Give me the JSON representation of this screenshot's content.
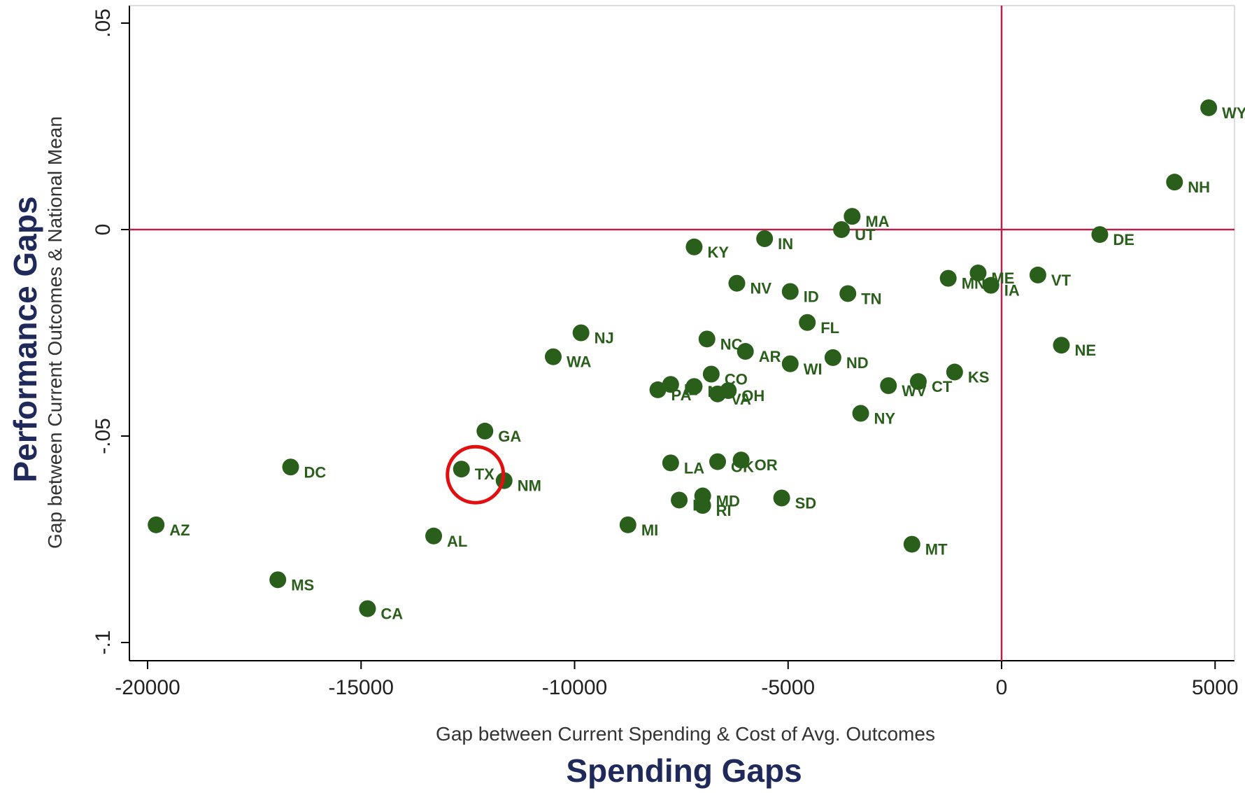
{
  "colors": {
    "point": "#2a5e1b",
    "ref_line": "#b3234e",
    "highlight": "#e01010",
    "overlay_label": "#1f2a5a"
  },
  "overlay": {
    "y_title": "Performance Gaps",
    "x_title": "Spending Gaps"
  },
  "chart_data": {
    "type": "scatter",
    "xlabel": "Gap between Current Spending & Cost of Avg. Outcomes",
    "ylabel": "Gap between Current Outcomes & National Mean",
    "xlim": [
      -21000,
      5500
    ],
    "ylim": [
      -0.105,
      0.055
    ],
    "x_ticks": [
      -20000,
      -15000,
      -10000,
      -5000,
      0,
      5000
    ],
    "x_tick_labels": [
      "-20000",
      "-15000",
      "-10000",
      "-5000",
      "0",
      "5000"
    ],
    "y_ticks": [
      -0.1,
      -0.05,
      0,
      0.05
    ],
    "y_tick_labels": [
      "-.1",
      "-.05",
      "0",
      ".05"
    ],
    "reference_lines": {
      "x": 0,
      "y": 0
    },
    "grid": false,
    "highlight": "TX",
    "points": [
      {
        "label": "WY",
        "x": 4850,
        "y": 0.0295
      },
      {
        "label": "NH",
        "x": 4050,
        "y": 0.0115
      },
      {
        "label": "DE",
        "x": 2300,
        "y": -0.0012
      },
      {
        "label": "VT",
        "x": 850,
        "y": -0.011
      },
      {
        "label": "NE",
        "x": 1400,
        "y": -0.028
      },
      {
        "label": "ME",
        "x": -550,
        "y": -0.0105
      },
      {
        "label": "MN",
        "x": -1250,
        "y": -0.0118
      },
      {
        "label": "IA",
        "x": -250,
        "y": -0.0135
      },
      {
        "label": "KS",
        "x": -1100,
        "y": -0.0345
      },
      {
        "label": "CT",
        "x": -1950,
        "y": -0.0368
      },
      {
        "label": "WV",
        "x": -2650,
        "y": -0.0378
      },
      {
        "label": "MT",
        "x": -2100,
        "y": -0.0762
      },
      {
        "label": "NY",
        "x": -3300,
        "y": -0.0445
      },
      {
        "label": "MA",
        "x": -3500,
        "y": 0.0032
      },
      {
        "label": "UT",
        "x": -3750,
        "y": 0.0
      },
      {
        "label": "TN",
        "x": -3600,
        "y": -0.0155
      },
      {
        "label": "ND",
        "x": -3950,
        "y": -0.031
      },
      {
        "label": "FL",
        "x": -4550,
        "y": -0.0225
      },
      {
        "label": "ID",
        "x": -4950,
        "y": -0.015
      },
      {
        "label": "WI",
        "x": -4950,
        "y": -0.0325
      },
      {
        "label": "IN",
        "x": -5550,
        "y": -0.0022
      },
      {
        "label": "SD",
        "x": -5150,
        "y": -0.065
      },
      {
        "label": "NV",
        "x": -6200,
        "y": -0.013
      },
      {
        "label": "AR",
        "x": -6000,
        "y": -0.0295
      },
      {
        "label": "KY",
        "x": -7200,
        "y": -0.0042
      },
      {
        "label": "NC",
        "x": -6900,
        "y": -0.0265
      },
      {
        "label": "CO",
        "x": -6800,
        "y": -0.035
      },
      {
        "label": "OH",
        "x": -6400,
        "y": -0.039
      },
      {
        "label": "VA",
        "x": -6650,
        "y": -0.0398
      },
      {
        "label": "MO",
        "x": -7200,
        "y": -0.038
      },
      {
        "label": "IL",
        "x": -7750,
        "y": -0.0375
      },
      {
        "label": "PA",
        "x": -8050,
        "y": -0.0388
      },
      {
        "label": "OR",
        "x": -6100,
        "y": -0.0558
      },
      {
        "label": "OK",
        "x": -6650,
        "y": -0.0562
      },
      {
        "label": "LA",
        "x": -7750,
        "y": -0.0565
      },
      {
        "label": "MD",
        "x": -7000,
        "y": -0.0645
      },
      {
        "label": "HI",
        "x": -7550,
        "y": -0.0655
      },
      {
        "label": "RI",
        "x": -7000,
        "y": -0.0668
      },
      {
        "label": "MI",
        "x": -8750,
        "y": -0.0715
      },
      {
        "label": "NJ",
        "x": -9850,
        "y": -0.025
      },
      {
        "label": "WA",
        "x": -10500,
        "y": -0.0308
      },
      {
        "label": "GA",
        "x": -12100,
        "y": -0.0488
      },
      {
        "label": "TX",
        "x": -12650,
        "y": -0.058
      },
      {
        "label": "NM",
        "x": -11650,
        "y": -0.0608
      },
      {
        "label": "AL",
        "x": -13300,
        "y": -0.0742
      },
      {
        "label": "CA",
        "x": -14850,
        "y": -0.0918
      },
      {
        "label": "DC",
        "x": -16650,
        "y": -0.0575
      },
      {
        "label": "MS",
        "x": -16950,
        "y": -0.0848
      },
      {
        "label": "AZ",
        "x": -19800,
        "y": -0.0715
      }
    ]
  }
}
